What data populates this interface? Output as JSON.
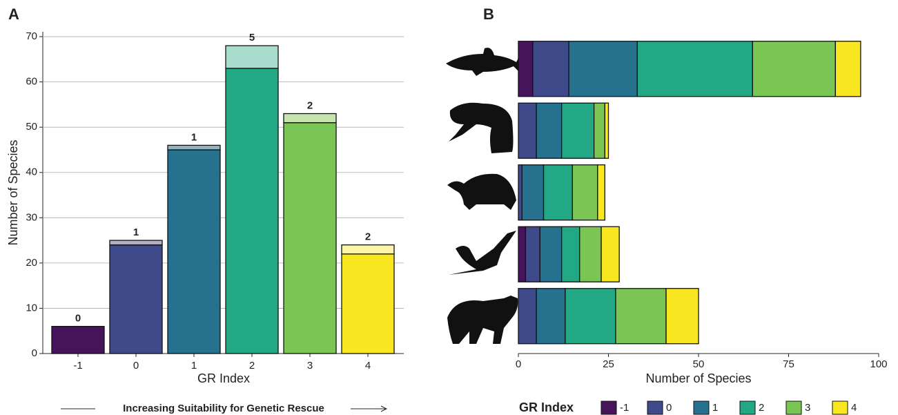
{
  "chart_data": [
    {
      "type": "bar",
      "orientation": "vertical",
      "stacked": true,
      "panel": "A",
      "categories": [
        "-1",
        "0",
        "1",
        "2",
        "3",
        "4"
      ],
      "series": [
        {
          "colors": [
            "#45145a",
            "#3e4a89",
            "#25718e",
            "#22a884",
            "#7ac554",
            "#f8e621"
          ],
          "values": [
            6,
            24,
            45,
            63,
            51,
            22
          ]
        },
        {
          "colors": [
            "#b5a3bc",
            "#aeb1c9",
            "#8fb5c4",
            "#a8dccc",
            "#c6e4ae",
            "#fcf5a8"
          ],
          "values": [
            0,
            1,
            1,
            5,
            2,
            2
          ]
        }
      ],
      "xlabel": "GR Index",
      "ylabel": "Number of Species",
      "annotation": "Increasing Suitability for Genetic Rescue",
      "ylim": [
        0,
        71
      ],
      "yticks": [
        0,
        10,
        20,
        30,
        40,
        50,
        60,
        70
      ],
      "grid": true
    },
    {
      "type": "bar",
      "orientation": "horizontal",
      "stacked": true,
      "panel": "B",
      "categories": [
        null,
        null,
        null,
        null,
        null
      ],
      "series": [
        {
          "name": "-1",
          "color": "#45145a",
          "values": [
            4,
            0,
            0,
            2,
            0
          ]
        },
        {
          "name": "0",
          "color": "#3e4a89",
          "values": [
            10,
            5,
            1,
            4,
            5
          ]
        },
        {
          "name": "1",
          "color": "#25718e",
          "values": [
            19,
            7,
            6,
            6,
            8
          ]
        },
        {
          "name": "2",
          "color": "#22a884",
          "values": [
            32,
            9,
            8,
            5,
            14
          ]
        },
        {
          "name": "3",
          "color": "#7ac554",
          "values": [
            23,
            3,
            7,
            6,
            14
          ]
        },
        {
          "name": "4",
          "color": "#f8e621",
          "values": [
            7,
            1,
            2,
            5,
            9
          ]
        }
      ],
      "xlabel": "Number of Species",
      "legend_title": "GR Index",
      "legend": "bottom",
      "xlim": [
        0,
        100
      ],
      "xticks": [
        0,
        25,
        50,
        75,
        100
      ]
    }
  ]
}
